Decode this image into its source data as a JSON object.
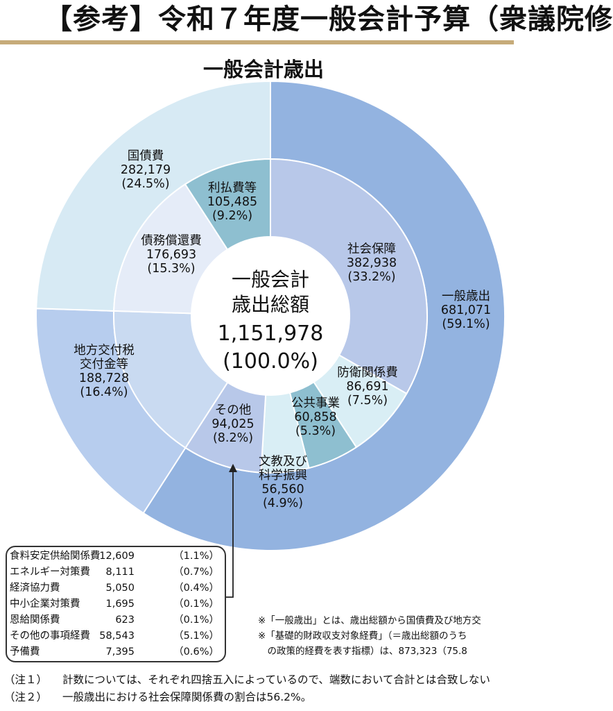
{
  "page_title": "【参考】令和７年度一般会計予算（衆議院修",
  "chart_data": {
    "type": "pie",
    "title": "一般会計歳出",
    "center": {
      "line1": "一般会計",
      "line2": "歳出総額",
      "value": "1,151,978",
      "share": "(100.0%)"
    },
    "outer_ring": [
      {
        "name": "一般歳出",
        "value": 681071,
        "value_label": "681,071",
        "share": "(59.1%)",
        "color": "#93b3e0"
      },
      {
        "name": "地方交付税交付金等",
        "label_lines": [
          "地方交付税",
          "交付金等"
        ],
        "value": 188728,
        "value_label": "188,728",
        "share": "(16.4%)",
        "color": "#b7cdee"
      },
      {
        "name": "国債費",
        "value": 282179,
        "value_label": "282,179",
        "share": "(24.5%)",
        "color": "#d7eaf4"
      }
    ],
    "inner_ring": [
      {
        "name": "社会保障",
        "label_lines": [
          "社会保障"
        ],
        "value": 382938,
        "value_label": "382,938",
        "share": "(33.2%)",
        "color": "#b8c8e9"
      },
      {
        "name": "防衛関係費",
        "label_lines": [
          "防衛関係費"
        ],
        "value": 86691,
        "value_label": "86,691",
        "share": "(7.5%)",
        "color": "#d9eef5"
      },
      {
        "name": "公共事業",
        "label_lines": [
          "公共事業"
        ],
        "value": 60858,
        "value_label": "60,858",
        "share": "(5.3%)",
        "color": "#8ebfd0"
      },
      {
        "name": "文教及び科学振興",
        "label_lines": [
          "文教及び",
          "科学振興"
        ],
        "value": 56560,
        "value_label": "56,560",
        "share": "(4.9%)",
        "color": "#d9eef5"
      },
      {
        "name": "その他",
        "label_lines": [
          "その他"
        ],
        "value": 94025,
        "value_label": "94,025",
        "share": "(8.2%)",
        "color": "#b8c8e9"
      },
      {
        "name": "地方交付税交付金等",
        "label_lines": [],
        "value": 188728,
        "color": "#c9daf1"
      },
      {
        "name": "債務償還費",
        "label_lines": [
          "債務償還費"
        ],
        "value": 176693,
        "value_label": "176,693",
        "share": "(15.3%)",
        "color": "#e5ecf8"
      },
      {
        "name": "利払費等",
        "label_lines": [
          "利払費等"
        ],
        "value": 105485,
        "value_label": "105,485",
        "share": "(9.2%)",
        "color": "#8ebfd0"
      }
    ]
  },
  "other_breakdown": [
    {
      "name": "食料安定供給関係費",
      "value": "12,609",
      "share": "（1.1%）"
    },
    {
      "name": "エネルギー対策費",
      "value": "8,111",
      "share": "（0.7%）"
    },
    {
      "name": "経済協力費",
      "value": "5,050",
      "share": "（0.4%）"
    },
    {
      "name": "中小企業対策費",
      "value": "1,695",
      "share": "（0.1%）"
    },
    {
      "name": "恩給関係費",
      "value": "623",
      "share": "（0.1%）"
    },
    {
      "name": "その他の事項経費",
      "value": "58,543",
      "share": "（5.1%）"
    },
    {
      "name": "予備費",
      "value": "7,395",
      "share": "（0.6%）"
    }
  ],
  "footnotes": {
    "star1": "※「一般歳出」とは、歳出総額から国債費及び地方交",
    "star2": "※「基礎的財政収支対象経費」（＝歳出総額のうち",
    "star3": "　の政策的経費を表す指標）は、873,323（75.8",
    "note1_mark": "（注１）",
    "note1_text": "計数については、それぞれ四捨五入によっているので、端数において合計とは合致しない",
    "note2_mark": "（注２）",
    "note2_text": "一般歳出における社会保障関係費の割合は56.2%。"
  },
  "colors": {
    "title_rule": "#c6ab79",
    "stroke": "#ffffff",
    "text": "#111111"
  }
}
